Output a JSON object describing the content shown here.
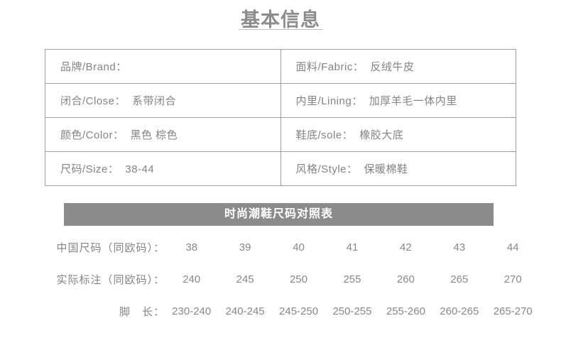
{
  "page": {
    "title": "基本信息"
  },
  "info_table": {
    "rows": [
      {
        "left": {
          "label": "品牌/Brand：",
          "value": ""
        },
        "right": {
          "label": "面料/Fabric：",
          "value": "反绒牛皮"
        }
      },
      {
        "left": {
          "label": "闭合/Close：",
          "value": "系带闭合"
        },
        "right": {
          "label": "内里/Lining：",
          "value": "加厚羊毛一体内里"
        }
      },
      {
        "left": {
          "label": "颜色/Color：",
          "value": "黑色 棕色"
        },
        "right": {
          "label": "鞋底/sole：",
          "value": "橡胶大底"
        }
      },
      {
        "left": {
          "label": "尺码/Size：",
          "value": "38-44"
        },
        "right": {
          "label": "风格/Style：",
          "value": "保暖棉鞋"
        }
      }
    ]
  },
  "size_chart": {
    "banner_title": "时尚潮鞋尺码对照表",
    "rows": [
      {
        "label": "中国尺码（同欧码）：",
        "values": [
          "38",
          "39",
          "40",
          "41",
          "42",
          "43",
          "44"
        ]
      },
      {
        "label": "实际标注（同欧码）：",
        "values": [
          "240",
          "245",
          "250",
          "255",
          "260",
          "265",
          "270"
        ]
      },
      {
        "label": "脚　长：",
        "values": [
          "230-240",
          "240-245",
          "245-250",
          "250-255",
          "255-260",
          "260-265",
          "265-270"
        ]
      }
    ]
  },
  "colors": {
    "banner_bg": "#8b8b8b",
    "banner_text": "#ffffff",
    "body_text": "#858585",
    "table_border": "#9e9e9e"
  }
}
